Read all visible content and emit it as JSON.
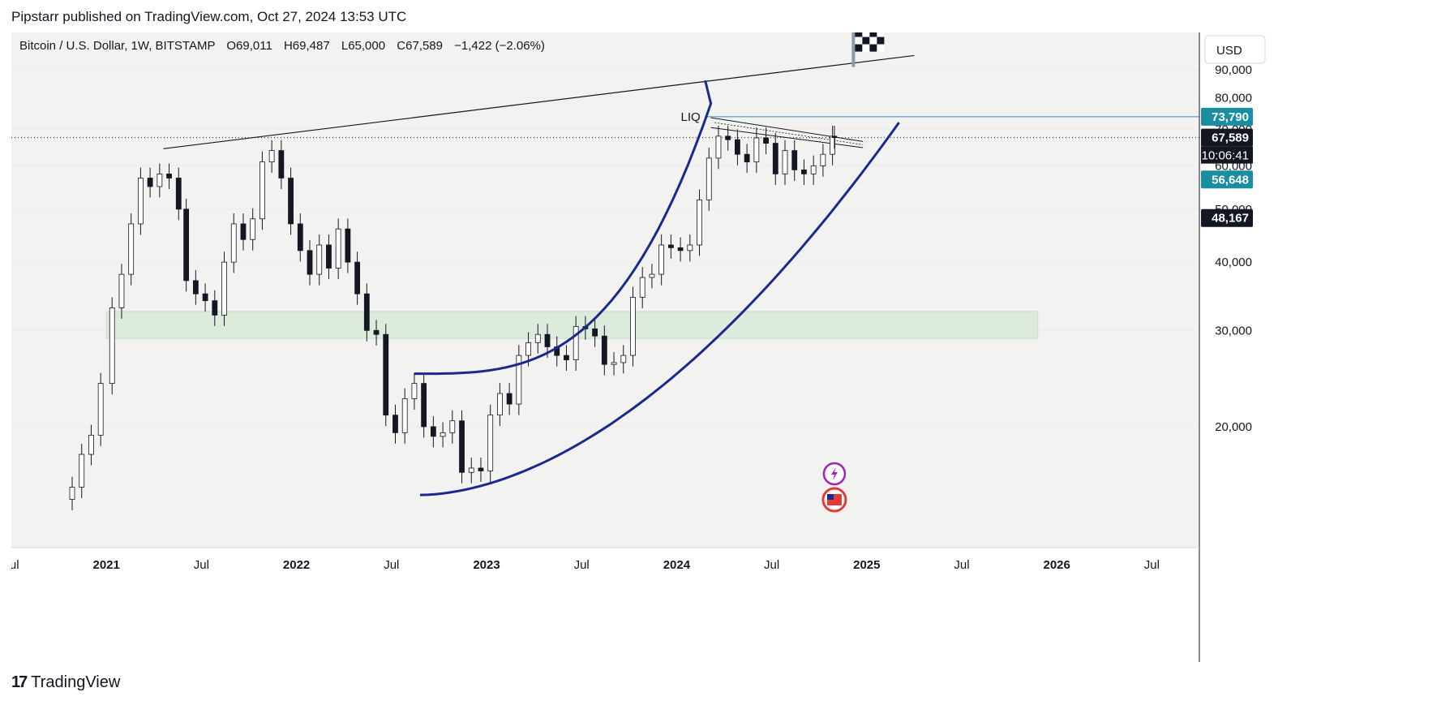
{
  "header": {
    "published_text": "Pipstarr published on TradingView.com, Oct 27, 2024 13:53 UTC"
  },
  "footer": {
    "brand": "TradingView",
    "logo_glyph": "17"
  },
  "colors": {
    "background": "#f2f2f1",
    "candle_body": "#ffffff",
    "candle_outline": "#131722",
    "cup_curve": "#1a2a8c",
    "liq_line": "#2f8fb4",
    "zone_fill": "#dcebdc",
    "badge_cyan": "#1a8ea0",
    "badge_dark": "#131722"
  },
  "chart_data": {
    "type": "candlestick",
    "title": "Bitcoin / U.S. Dollar, 1W, BITSTAMP",
    "ohlc_text": {
      "o": "O69,011",
      "h": "H69,487",
      "l": "L65,000",
      "c": "C67,589",
      "chg": "−1,422 (−2.06%)"
    },
    "currency": "USD",
    "x_ticks": [
      "Jul",
      "2021",
      "Jul",
      "2022",
      "Jul",
      "2023",
      "Jul",
      "2024",
      "Jul",
      "2025",
      "Jul",
      "2026",
      "Jul"
    ],
    "x_range": [
      2020.5,
      2026.75
    ],
    "y_ticks": [
      "20,000",
      "30,000",
      "40,000",
      "50,000",
      "60,000",
      "70,000",
      "80,000",
      "90,000"
    ],
    "y_range": [
      13000,
      95000
    ],
    "scale": "log",
    "price_badges": [
      {
        "label": "73,790",
        "value": 73790,
        "style": "cyan"
      },
      {
        "label": "67,589",
        "value": 67589,
        "style": "dark",
        "sub": "10:06:41"
      },
      {
        "label": "56,648",
        "value": 56648,
        "style": "cyan"
      },
      {
        "label": "48,167",
        "value": 48167,
        "style": "dark"
      }
    ],
    "annotations": {
      "liq_label": "LIQ",
      "liq_level": 73790,
      "current_price": 67589
    },
    "zone": {
      "low": 29000,
      "high": 32500,
      "from": 2021.0,
      "to": 2025.9
    },
    "trendline": {
      "from": [
        2021.3,
        64500
      ],
      "to": [
        2025.25,
        95500
      ]
    },
    "closes": [
      [
        2020.82,
        15500
      ],
      [
        2020.87,
        17800
      ],
      [
        2020.92,
        19300
      ],
      [
        2020.97,
        24000
      ],
      [
        2021.03,
        33000
      ],
      [
        2021.08,
        38000
      ],
      [
        2021.13,
        47000
      ],
      [
        2021.18,
        57000
      ],
      [
        2021.23,
        55000
      ],
      [
        2021.28,
        58000
      ],
      [
        2021.33,
        57000
      ],
      [
        2021.38,
        50000
      ],
      [
        2021.42,
        37000
      ],
      [
        2021.47,
        35000
      ],
      [
        2021.52,
        34000
      ],
      [
        2021.57,
        32000
      ],
      [
        2021.62,
        40000
      ],
      [
        2021.67,
        47000
      ],
      [
        2021.72,
        44000
      ],
      [
        2021.77,
        48000
      ],
      [
        2021.82,
        61000
      ],
      [
        2021.87,
        64000
      ],
      [
        2021.92,
        57000
      ],
      [
        2021.97,
        47000
      ],
      [
        2022.02,
        42000
      ],
      [
        2022.07,
        38000
      ],
      [
        2022.12,
        43000
      ],
      [
        2022.17,
        39000
      ],
      [
        2022.22,
        46000
      ],
      [
        2022.27,
        40000
      ],
      [
        2022.32,
        35000
      ],
      [
        2022.37,
        30000
      ],
      [
        2022.42,
        29500
      ],
      [
        2022.47,
        21000
      ],
      [
        2022.52,
        19500
      ],
      [
        2022.57,
        22500
      ],
      [
        2022.62,
        24000
      ],
      [
        2022.67,
        20000
      ],
      [
        2022.72,
        19200
      ],
      [
        2022.77,
        19500
      ],
      [
        2022.82,
        20500
      ],
      [
        2022.87,
        16500
      ],
      [
        2022.92,
        16800
      ],
      [
        2022.97,
        16600
      ],
      [
        2023.02,
        21000
      ],
      [
        2023.07,
        23000
      ],
      [
        2023.12,
        22000
      ],
      [
        2023.17,
        27000
      ],
      [
        2023.22,
        28500
      ],
      [
        2023.27,
        29500
      ],
      [
        2023.32,
        28000
      ],
      [
        2023.37,
        27000
      ],
      [
        2023.42,
        26500
      ],
      [
        2023.47,
        30500
      ],
      [
        2023.52,
        30200
      ],
      [
        2023.57,
        29300
      ],
      [
        2023.62,
        26000
      ],
      [
        2023.67,
        26200
      ],
      [
        2023.72,
        27000
      ],
      [
        2023.77,
        34500
      ],
      [
        2023.82,
        37500
      ],
      [
        2023.87,
        38000
      ],
      [
        2023.92,
        43000
      ],
      [
        2023.97,
        42500
      ],
      [
        2024.02,
        42000
      ],
      [
        2024.07,
        43000
      ],
      [
        2024.12,
        52000
      ],
      [
        2024.17,
        62000
      ],
      [
        2024.22,
        68000
      ],
      [
        2024.27,
        67000
      ],
      [
        2024.32,
        63000
      ],
      [
        2024.37,
        61000
      ],
      [
        2024.42,
        67500
      ],
      [
        2024.47,
        66000
      ],
      [
        2024.52,
        58000
      ],
      [
        2024.57,
        64000
      ],
      [
        2024.62,
        59000
      ],
      [
        2024.67,
        58000
      ],
      [
        2024.72,
        60000
      ],
      [
        2024.77,
        63000
      ],
      [
        2024.82,
        68000
      ],
      [
        2024.83,
        67589
      ]
    ]
  }
}
